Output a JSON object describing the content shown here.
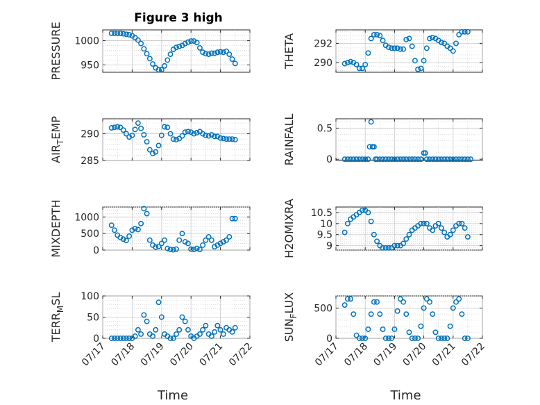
{
  "figure": {
    "title": "Figure 3 high"
  },
  "chart_data": [
    {
      "type": "scatter",
      "ylabel": "PRESSURE",
      "yticks": [
        950,
        1000
      ],
      "ylim": [
        935,
        1022
      ],
      "xlim": [
        0,
        5
      ],
      "xticks": [],
      "xticklabels": [],
      "xlabel": "",
      "title": "Figure 3 high",
      "x": [
        0.3,
        0.4,
        0.5,
        0.6,
        0.7,
        0.8,
        0.9,
        1.0,
        1.1,
        1.2,
        1.3,
        1.4,
        1.5,
        1.6,
        1.7,
        1.8,
        1.9,
        2.0,
        2.1,
        2.2,
        2.3,
        2.4,
        2.5,
        2.6,
        2.7,
        2.8,
        2.9,
        3.0,
        3.1,
        3.2,
        3.3,
        3.4,
        3.5,
        3.6,
        3.7,
        3.8,
        3.9,
        4.0,
        4.1,
        4.2,
        4.3,
        4.4,
        4.5
      ],
      "y": [
        1015,
        1015,
        1015,
        1015,
        1014,
        1013,
        1012,
        1010,
        1006,
        1001,
        994,
        983,
        973,
        963,
        952,
        944,
        940,
        940,
        948,
        960,
        972,
        982,
        986,
        988,
        990,
        994,
        997,
        999,
        999,
        996,
        985,
        976,
        973,
        972,
        974,
        974,
        976,
        977,
        976,
        978,
        972,
        962,
        953
      ]
    },
    {
      "type": "scatter",
      "ylabel": "THETA",
      "yticks": [
        290,
        292
      ],
      "ylim": [
        289,
        293.4
      ],
      "xlim": [
        0,
        5
      ],
      "xticks": [],
      "xticklabels": [],
      "xlabel": "",
      "x": [
        0.3,
        0.4,
        0.5,
        0.6,
        0.7,
        0.8,
        0.9,
        1.0,
        1.1,
        1.2,
        1.3,
        1.4,
        1.5,
        1.6,
        1.7,
        1.8,
        1.9,
        2.0,
        2.1,
        2.2,
        2.3,
        2.4,
        2.5,
        2.6,
        2.7,
        2.8,
        2.9,
        3.0,
        3.1,
        3.2,
        3.3,
        3.4,
        3.5,
        3.6,
        3.7,
        3.8,
        3.9,
        4.0,
        4.1,
        4.2,
        4.3,
        4.4,
        4.5
      ],
      "y": [
        289.9,
        290.0,
        290.1,
        290.0,
        289.8,
        289.4,
        289.4,
        289.8,
        291.0,
        292.5,
        292.9,
        292.9,
        292.8,
        292.3,
        291.8,
        291.6,
        291.5,
        291.5,
        291.5,
        291.4,
        291.4,
        292.4,
        292.5,
        291.7,
        290.2,
        289.3,
        289.4,
        290.2,
        291.5,
        292.5,
        292.6,
        292.5,
        292.3,
        292.1,
        292.0,
        291.7,
        291.5,
        291.2,
        292.0,
        292.9,
        293.2,
        293.2,
        293.2
      ]
    },
    {
      "type": "scatter",
      "ylabel": "AIR_TEMP",
      "yticks": [
        285,
        290
      ],
      "ylim": [
        285,
        292.8
      ],
      "xlim": [
        0,
        5
      ],
      "xticks": [],
      "xticklabels": [],
      "xlabel": "",
      "x": [
        0.3,
        0.4,
        0.5,
        0.6,
        0.7,
        0.8,
        0.9,
        1.0,
        1.1,
        1.2,
        1.3,
        1.4,
        1.5,
        1.6,
        1.7,
        1.8,
        1.9,
        2.0,
        2.1,
        2.2,
        2.3,
        2.4,
        2.5,
        2.6,
        2.7,
        2.8,
        2.9,
        3.0,
        3.1,
        3.2,
        3.3,
        3.4,
        3.5,
        3.6,
        3.7,
        3.8,
        3.9,
        4.0,
        4.1,
        4.2,
        4.3,
        4.4,
        4.5
      ],
      "y": [
        291.1,
        291.2,
        291.3,
        291.2,
        290.7,
        290.0,
        289.4,
        289.7,
        290.8,
        292.0,
        291.0,
        289.8,
        288.5,
        287.0,
        286.3,
        286.6,
        287.8,
        289.7,
        291.3,
        291.2,
        290.0,
        289.0,
        288.9,
        289.1,
        289.6,
        290.3,
        290.4,
        290.3,
        290.0,
        290.2,
        290.4,
        290.0,
        289.7,
        289.6,
        289.8,
        289.5,
        289.5,
        289.2,
        289.1,
        289.0,
        289.0,
        289.0,
        288.9
      ]
    },
    {
      "type": "scatter",
      "ylabel": "RAINFALL",
      "yticks": [
        0,
        0.5
      ],
      "ylim": [
        -0.02,
        0.65
      ],
      "xlim": [
        0,
        5
      ],
      "xticks": [],
      "xticklabels": [],
      "xlabel": "",
      "x": [
        0.3,
        0.4,
        0.5,
        0.6,
        0.7,
        0.8,
        0.9,
        1.0,
        1.1,
        1.15,
        1.2,
        1.25,
        1.3,
        1.35,
        1.4,
        1.5,
        1.6,
        1.7,
        1.8,
        1.9,
        2.0,
        2.1,
        2.2,
        2.3,
        2.4,
        2.5,
        2.6,
        2.7,
        2.8,
        2.9,
        3.0,
        3.05,
        3.1,
        3.2,
        3.3,
        3.4,
        3.5,
        3.6,
        3.7,
        3.8,
        3.9,
        4.0,
        4.1,
        4.2,
        4.3,
        4.4,
        4.5,
        4.6
      ],
      "y": [
        0,
        0,
        0,
        0,
        0,
        0,
        0,
        0,
        0,
        0.2,
        0.6,
        0.2,
        0.2,
        0,
        0,
        0,
        0,
        0,
        0,
        0,
        0,
        0,
        0,
        0,
        0,
        0,
        0,
        0,
        0,
        0,
        0.1,
        0.1,
        0,
        0,
        0,
        0,
        0,
        0,
        0,
        0,
        0,
        0,
        0,
        0,
        0,
        0,
        0,
        0
      ]
    },
    {
      "type": "scatter",
      "ylabel": "MIXDEPTH",
      "yticks": [
        0,
        500,
        1000
      ],
      "ylim": [
        0,
        1300
      ],
      "xlim": [
        0,
        5
      ],
      "xticks": [],
      "xticklabels": [],
      "xlabel": "",
      "x": [
        0.3,
        0.4,
        0.5,
        0.6,
        0.7,
        0.8,
        0.9,
        1.0,
        1.1,
        1.2,
        1.3,
        1.4,
        1.5,
        1.6,
        1.7,
        1.8,
        1.9,
        2.0,
        2.1,
        2.2,
        2.3,
        2.4,
        2.5,
        2.6,
        2.7,
        2.8,
        2.9,
        3.0,
        3.1,
        3.2,
        3.3,
        3.4,
        3.5,
        3.6,
        3.7,
        3.8,
        3.9,
        4.0,
        4.1,
        4.2,
        4.3,
        4.4,
        4.5
      ],
      "y": [
        750,
        600,
        450,
        380,
        330,
        290,
        420,
        600,
        650,
        620,
        800,
        1250,
        1100,
        300,
        150,
        90,
        110,
        200,
        300,
        50,
        20,
        10,
        30,
        300,
        500,
        250,
        200,
        30,
        20,
        50,
        20,
        150,
        300,
        400,
        300,
        100,
        150,
        200,
        250,
        300,
        400,
        950,
        950
      ]
    },
    {
      "type": "scatter",
      "ylabel": "H2OMIXRA",
      "yticks": [
        9,
        9.5,
        10,
        10.5
      ],
      "ylim": [
        8.8,
        10.75
      ],
      "xlim": [
        0,
        5
      ],
      "xticks": [],
      "xticklabels": [],
      "xlabel": "",
      "x": [
        0.3,
        0.4,
        0.5,
        0.6,
        0.7,
        0.8,
        0.9,
        1.0,
        1.1,
        1.2,
        1.3,
        1.4,
        1.5,
        1.6,
        1.7,
        1.8,
        1.9,
        2.0,
        2.1,
        2.2,
        2.3,
        2.4,
        2.5,
        2.6,
        2.7,
        2.8,
        2.9,
        3.0,
        3.1,
        3.2,
        3.3,
        3.4,
        3.5,
        3.6,
        3.7,
        3.8,
        3.9,
        4.0,
        4.1,
        4.2,
        4.3,
        4.4,
        4.5
      ],
      "y": [
        9.6,
        10.0,
        10.2,
        10.3,
        10.4,
        10.5,
        10.6,
        10.6,
        10.5,
        10.1,
        9.5,
        9.2,
        9.0,
        8.9,
        8.9,
        8.9,
        8.9,
        9.0,
        9.0,
        9.0,
        9.1,
        9.3,
        9.5,
        9.7,
        9.8,
        9.9,
        10.0,
        10.0,
        10.0,
        9.8,
        9.7,
        9.9,
        10.0,
        9.8,
        9.6,
        9.4,
        9.5,
        9.7,
        9.9,
        10.0,
        10.0,
        9.8,
        9.4
      ]
    },
    {
      "type": "scatter",
      "ylabel": "TERR_MSL",
      "yticks": [
        0,
        50,
        100
      ],
      "ylim": [
        0,
        100
      ],
      "xlim": [
        0,
        5
      ],
      "xticks": [
        0,
        1,
        2,
        3,
        4,
        5
      ],
      "xticklabels": [
        "07/17",
        "07/18",
        "07/19",
        "07/20",
        "07/21",
        "07/22"
      ],
      "xlabel": "Time",
      "x": [
        0.3,
        0.4,
        0.5,
        0.6,
        0.7,
        0.8,
        0.9,
        1.0,
        1.1,
        1.2,
        1.3,
        1.4,
        1.5,
        1.6,
        1.7,
        1.8,
        1.9,
        2.0,
        2.1,
        2.2,
        2.3,
        2.4,
        2.5,
        2.6,
        2.7,
        2.8,
        2.9,
        3.0,
        3.1,
        3.2,
        3.3,
        3.4,
        3.5,
        3.6,
        3.7,
        3.8,
        3.9,
        4.0,
        4.1,
        4.2,
        4.3,
        4.4,
        4.5
      ],
      "y": [
        0,
        0,
        0,
        0,
        0,
        0,
        0,
        0,
        5,
        20,
        10,
        55,
        40,
        10,
        5,
        20,
        85,
        50,
        10,
        5,
        0,
        0,
        10,
        20,
        50,
        40,
        20,
        5,
        0,
        5,
        10,
        20,
        30,
        10,
        5,
        15,
        30,
        20,
        10,
        25,
        20,
        15,
        25
      ]
    },
    {
      "type": "scatter",
      "ylabel": "SUN_FLUX",
      "yticks": [
        0,
        500
      ],
      "ylim": [
        0,
        700
      ],
      "xlim": [
        0,
        5
      ],
      "xticks": [
        0,
        1,
        2,
        3,
        4,
        5
      ],
      "xticklabels": [
        "07/17",
        "07/18",
        "07/19",
        "07/20",
        "07/21",
        "07/22"
      ],
      "xlabel": "Time",
      "x": [
        0.3,
        0.4,
        0.5,
        0.6,
        0.7,
        0.8,
        0.9,
        1.0,
        1.1,
        1.2,
        1.3,
        1.4,
        1.5,
        1.6,
        1.7,
        1.8,
        1.9,
        2.0,
        2.1,
        2.2,
        2.3,
        2.4,
        2.5,
        2.6,
        2.7,
        2.8,
        2.9,
        3.0,
        3.1,
        3.2,
        3.3,
        3.4,
        3.5,
        3.6,
        3.7,
        3.8,
        3.9,
        4.0,
        4.1,
        4.2,
        4.3,
        4.4,
        4.5
      ],
      "y": [
        550,
        650,
        650,
        400,
        50,
        0,
        0,
        0,
        150,
        400,
        600,
        600,
        400,
        150,
        0,
        0,
        0,
        150,
        450,
        650,
        600,
        400,
        100,
        0,
        0,
        0,
        200,
        500,
        650,
        600,
        400,
        100,
        0,
        0,
        0,
        0,
        200,
        500,
        600,
        650,
        400,
        0,
        0
      ]
    }
  ]
}
